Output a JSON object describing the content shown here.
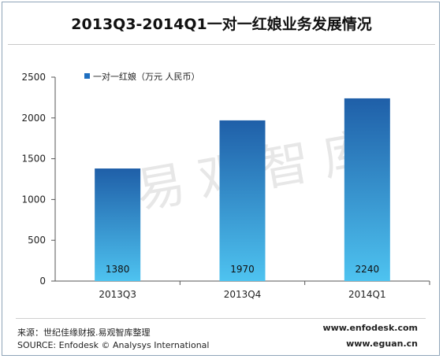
{
  "chart_data": {
    "type": "bar",
    "title": "2013Q3-2014Q1一对一红娘业务发展情况",
    "categories": [
      "2013Q3",
      "2013Q4",
      "2014Q1"
    ],
    "series": [
      {
        "name": "一对一红娘（万元 人民币）",
        "values": [
          1380,
          1970,
          2240
        ]
      }
    ],
    "ylim": [
      0,
      2500
    ],
    "yticks": [
      0,
      500,
      1000,
      1500,
      2000,
      2500
    ],
    "grid": false,
    "legend": "top-left",
    "colors": {
      "bar_top": "#1f5fa8",
      "bar_bottom": "#4ec3f0",
      "legend": "#1f6fc0",
      "axis": "#555555"
    }
  },
  "watermark": "易观智库",
  "footer": {
    "source_cn": "来源：世纪佳缘财报.易观智库整理",
    "source_en": "SOURCE: Enfodesk © Analysys International",
    "url1": "www.enfodesk.com",
    "url2": "www.eguan.cn"
  }
}
